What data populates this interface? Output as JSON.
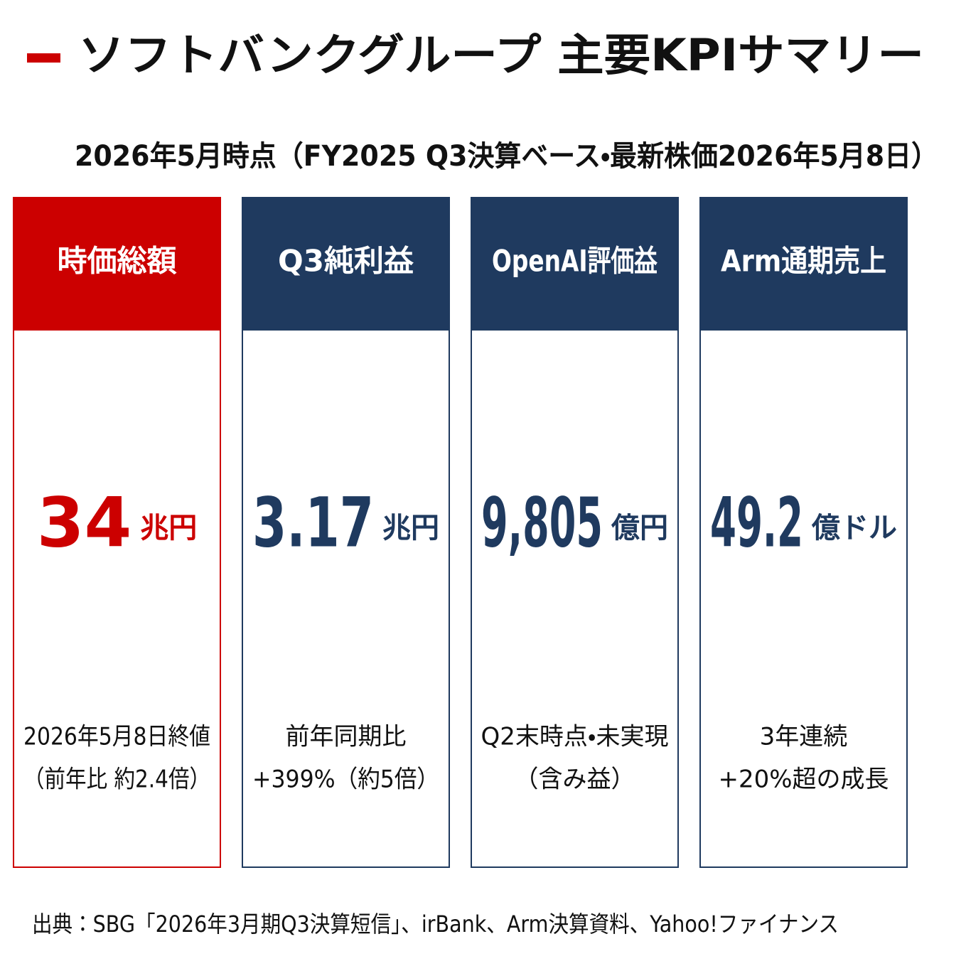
{
  "header": {
    "title": "ソフトバンクグループ 主要KPIサマリー",
    "subtitle": "2026年5月時点（FY2025 Q3決算ベース・最新株価2026年5月8日）"
  },
  "cards": [
    {
      "header": "時価総額",
      "value": "34",
      "unit": "兆円",
      "note": [
        "2026年5月8日終値",
        "（前年比 約2.4倍）"
      ],
      "color": "#cc0000"
    },
    {
      "header": "Q3純利益",
      "value": "3.17",
      "unit": "兆円",
      "note": [
        "前年同期比",
        "+399%（約5倍）"
      ],
      "color": "#1f3a5f"
    },
    {
      "header": "OpenAI評価益",
      "value": "9,805",
      "unit": "億円",
      "note": [
        "Q2末時点・未実現",
        "（含み益）"
      ],
      "color": "#1f3a5f"
    },
    {
      "header": "Arm通期売上",
      "value": "49.2",
      "unit": "億ドル",
      "note": [
        "3年連続",
        "+20%超の成長"
      ],
      "color": "#1f3a5f"
    }
  ],
  "source": "出典：SBG「2026年3月期Q3決算短信」、irBank、Arm決算資料、Yahoo!ファイナンス"
}
